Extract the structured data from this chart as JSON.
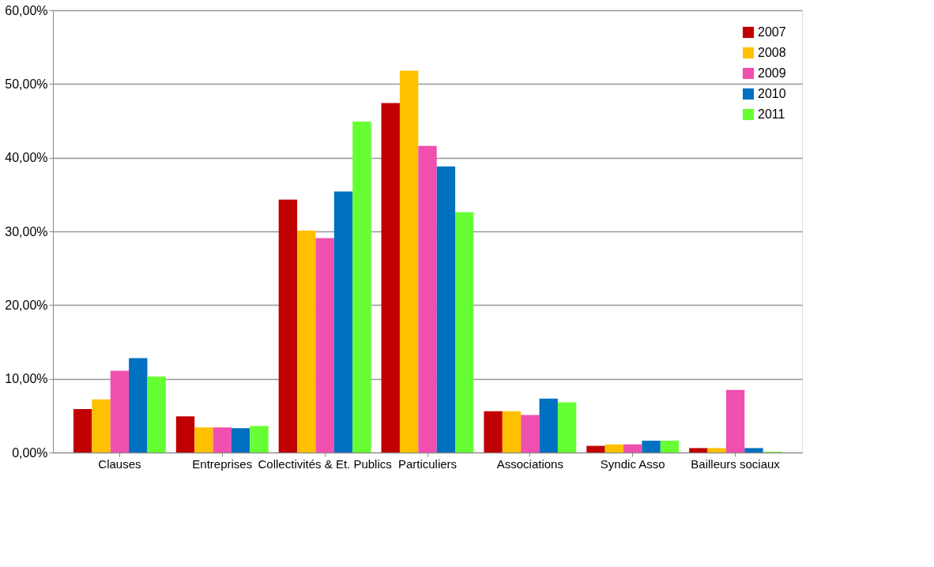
{
  "chart_data": {
    "type": "bar",
    "categories": [
      "Clauses",
      "Entreprises",
      "Collectivités & Et. Publics",
      "Particuliers",
      "Associations",
      "Syndic Asso",
      "Bailleurs sociaux"
    ],
    "series": [
      {
        "name": "2007",
        "color": "#c00000",
        "values": [
          5.9,
          4.9,
          34.3,
          47.4,
          5.6,
          0.9,
          0.6
        ]
      },
      {
        "name": "2008",
        "color": "#ffc000",
        "values": [
          7.2,
          3.4,
          30.1,
          51.8,
          5.6,
          1.1,
          0.6
        ]
      },
      {
        "name": "2009",
        "color": "#f050b0",
        "values": [
          11.1,
          3.4,
          29.1,
          41.6,
          5.1,
          1.1,
          8.5
        ]
      },
      {
        "name": "2010",
        "color": "#0070c0",
        "values": [
          12.8,
          3.3,
          35.4,
          38.8,
          7.3,
          1.6,
          0.6
        ]
      },
      {
        "name": "2011",
        "color": "#66ff33",
        "values": [
          10.3,
          3.6,
          44.9,
          32.6,
          6.8,
          1.6,
          0.1
        ]
      }
    ],
    "ylim": [
      0,
      60
    ],
    "yticks": [
      {
        "value": 0,
        "label": "0,00%"
      },
      {
        "value": 10,
        "label": "10,00%"
      },
      {
        "value": 20,
        "label": "20,00%"
      },
      {
        "value": 30,
        "label": "30,00%"
      },
      {
        "value": 40,
        "label": "40,00%"
      },
      {
        "value": 50,
        "label": "50,00%"
      },
      {
        "value": 60,
        "label": "60,00%"
      }
    ],
    "grid": "y",
    "legend": "top right"
  }
}
